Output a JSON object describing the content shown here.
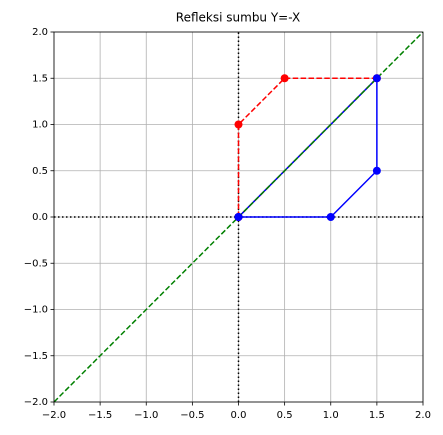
{
  "chart_data": {
    "type": "line",
    "title": "Refleksi sumbu Y=-X",
    "xlim": [
      -2,
      2
    ],
    "ylim": [
      -2,
      2
    ],
    "xticks": [
      {
        "value": -2,
        "label": "−2.0"
      },
      {
        "value": -1.5,
        "label": "−1.5"
      },
      {
        "value": -1,
        "label": "−1.0"
      },
      {
        "value": -0.5,
        "label": "−0.5"
      },
      {
        "value": 0,
        "label": "0.0"
      },
      0.5,
      {
        "value": 1,
        "label": "1.0"
      },
      1.5,
      {
        "value": 2,
        "label": "2.0"
      }
    ],
    "yticks": [
      {
        "value": -2,
        "label": "−2.0"
      },
      {
        "value": -1.5,
        "label": "−1.5"
      },
      {
        "value": -1,
        "label": "−1.0"
      },
      {
        "value": -0.5,
        "label": "−0.5"
      },
      {
        "value": 0,
        "label": "0.0"
      },
      0.5,
      {
        "value": 1,
        "label": "1.0"
      },
      1.5,
      {
        "value": 2,
        "label": "2.0"
      }
    ],
    "grid": true,
    "series": [
      {
        "color": "#000000",
        "linestyle": "dotted",
        "marker": false,
        "x": [
          -2,
          2
        ],
        "values": [
          0,
          0
        ]
      },
      {
        "color": "#000000",
        "linestyle": "dotted",
        "marker": false,
        "x": [
          0,
          0
        ],
        "values": [
          -2,
          2
        ]
      },
      {
        "color": "#ff0000",
        "linestyle": "dashed",
        "marker": true,
        "x": [
          0,
          0,
          0.5,
          1.5,
          0
        ],
        "values": [
          0,
          1,
          1.5,
          1.5,
          0
        ]
      },
      {
        "color": "#0000ff",
        "linestyle": "solid",
        "marker": true,
        "x": [
          0,
          1,
          1.5,
          1.5,
          0
        ],
        "values": [
          0,
          0,
          0.5,
          1.5,
          0
        ]
      },
      {
        "color": "#008000",
        "linestyle": "dashed",
        "marker": false,
        "x": [
          -2,
          2
        ],
        "values": [
          -2,
          2
        ]
      }
    ]
  }
}
